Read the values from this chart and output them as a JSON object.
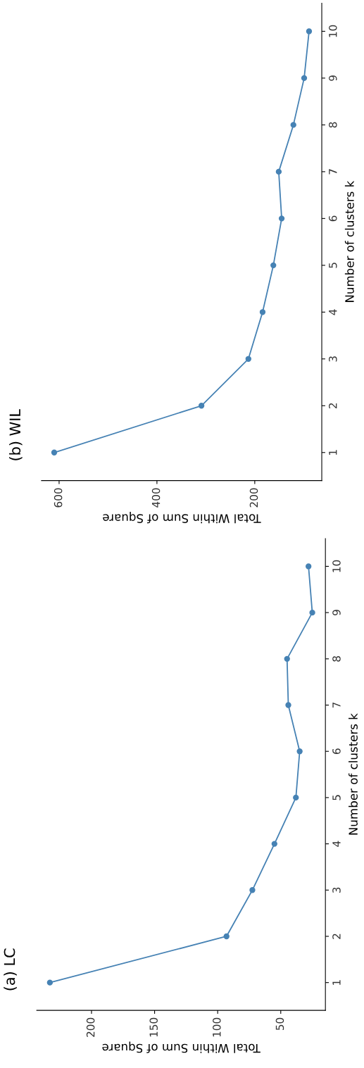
{
  "chart_data": [
    {
      "type": "line",
      "title": "(b) WIL",
      "xlabel": "Total Within Sum of Square",
      "ylabel": "Number of clusters k",
      "x": [
        610,
        309,
        213,
        184,
        162,
        145,
        151,
        121,
        99,
        89
      ],
      "series": [
        {
          "color": "#4682b4",
          "values": [
            1,
            2,
            3,
            4,
            5,
            6,
            7,
            8,
            9,
            10
          ]
        }
      ],
      "xlim": [
        636,
        63
      ],
      "xticks": [
        600,
        400,
        200
      ],
      "ylim": [
        0.4,
        10.6
      ],
      "yticks": [
        1,
        2,
        3,
        4,
        5,
        6,
        7,
        8,
        9,
        10
      ],
      "marker": "circle",
      "line_style": "solid"
    },
    {
      "type": "line",
      "title": "(a) LC",
      "xlabel": "Total Within Sum of Square",
      "ylabel": "Number of clusters k",
      "x": [
        233,
        93,
        72.5,
        55,
        38,
        35,
        44,
        45,
        25,
        28
      ],
      "series": [
        {
          "color": "#4682b4",
          "values": [
            1,
            2,
            3,
            4,
            5,
            6,
            7,
            8,
            9,
            10
          ]
        }
      ],
      "xlim": [
        243.4,
        14.6
      ],
      "xticks": [
        200,
        150,
        100,
        50
      ],
      "ylim": [
        0.4,
        10.6
      ],
      "yticks": [
        1,
        2,
        3,
        4,
        5,
        6,
        7,
        8,
        9,
        10
      ],
      "marker": "circle",
      "line_style": "solid"
    }
  ]
}
